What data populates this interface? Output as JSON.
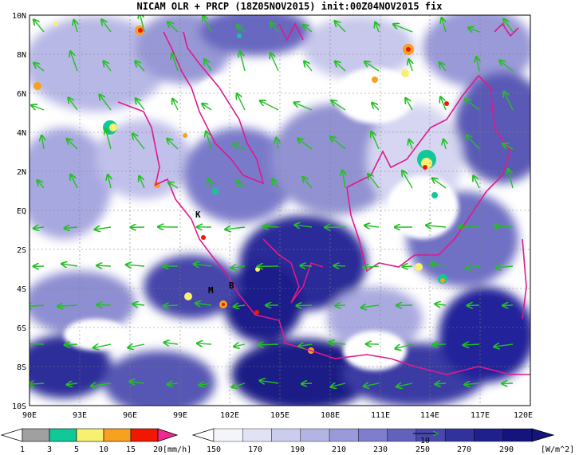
{
  "title": "NICAM OLR + PRCP (18Z05NOV2015) init:00Z04NOV2015 fix",
  "map": {
    "lat_labels": [
      "10N",
      "8N",
      "6N",
      "4N",
      "2N",
      "EQ",
      "2S",
      "4S",
      "6S",
      "8S",
      "10S"
    ],
    "lon_labels": [
      "90E",
      "93E",
      "96E",
      "99E",
      "102E",
      "105E",
      "108E",
      "111E",
      "114E",
      "117E",
      "120E"
    ],
    "site_labels": [
      {
        "text": "K"
      },
      {
        "text": "M"
      },
      {
        "text": "B"
      }
    ]
  },
  "precip_legend": {
    "ticks": [
      "1",
      "3",
      "5",
      "10",
      "15",
      "20"
    ],
    "unit": "[mm/h]",
    "colors": [
      "#a0a0a0",
      "#10c898",
      "#f8f070",
      "#f8a020",
      "#f01800",
      "#f02890"
    ]
  },
  "olr_legend": {
    "ticks": [
      "150",
      "170",
      "190",
      "210",
      "230",
      "250",
      "270",
      "290"
    ],
    "unit": "[W/m^2]",
    "vector_ref": "10",
    "colors": [
      "#f4f4fb",
      "#e2e2f5",
      "#ccccee",
      "#b4b4e4",
      "#9a9ad8",
      "#7e7ecc",
      "#6262bc",
      "#4848ac",
      "#32329c",
      "#20208c",
      "#14147c"
    ]
  },
  "colors": {
    "coastline": "#e0188c",
    "wind_vector": "#22c022",
    "grid": "#808080"
  }
}
